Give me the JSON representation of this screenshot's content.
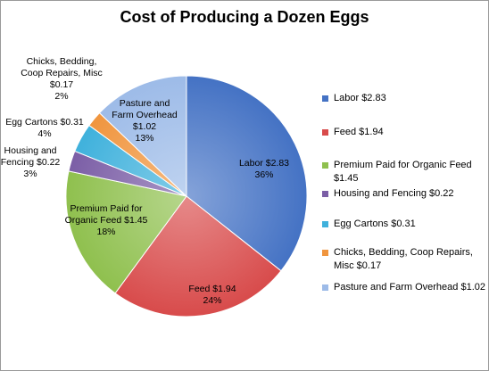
{
  "chart_data": {
    "type": "pie",
    "title": "Cost of Producing a Dozen Eggs",
    "start_angle_deg": 90,
    "direction": "clockwise",
    "slices": [
      {
        "label": "Labor",
        "value": 2.83,
        "value_text": "$2.83",
        "percent": "36%",
        "color": "#4472c4",
        "legend": "Labor $2.83",
        "data_label": [
          "Labor $2.83",
          "36%"
        ]
      },
      {
        "label": "Feed",
        "value": 1.94,
        "value_text": "$1.94",
        "percent": "24%",
        "color": "#d84b4b",
        "legend": "Feed $1.94",
        "data_label": [
          "Feed $1.94",
          "24%"
        ]
      },
      {
        "label": "Premium Paid for Organic Feed",
        "value": 1.45,
        "value_text": "$1.45",
        "percent": "18%",
        "color": "#8fc04e",
        "legend": "Premium Paid for Organic Feed $1.45",
        "data_label": [
          "Premium Paid for",
          "Organic Feed $1.45",
          "18%"
        ]
      },
      {
        "label": "Housing and Fencing",
        "value": 0.22,
        "value_text": "$0.22",
        "percent": "3%",
        "color": "#7b5ea6",
        "legend": "Housing and Fencing $0.22",
        "data_label": [
          "Housing and",
          "Fencing $0.22",
          "3%"
        ]
      },
      {
        "label": "Egg Cartons",
        "value": 0.31,
        "value_text": "$0.31",
        "percent": "4%",
        "color": "#3fb1dc",
        "legend": "Egg Cartons $0.31",
        "data_label": [
          "Egg Cartons $0.31",
          "4%"
        ]
      },
      {
        "label": "Chicks, Bedding, Coop Repairs, Misc",
        "value": 0.17,
        "value_text": "$0.17",
        "percent": "2%",
        "color": "#f0953e",
        "legend": "Chicks, Bedding, Coop Repairs, Misc $0.17",
        "data_label": [
          "Chicks, Bedding,",
          "Coop Repairs, Misc",
          "$0.17",
          "2%"
        ]
      },
      {
        "label": "Pasture and Farm Overhead",
        "value": 1.02,
        "value_text": "$1.02",
        "percent": "13%",
        "color": "#9dbbe8",
        "legend": "Pasture and Farm Overhead $1.02",
        "data_label": [
          "Pasture and",
          "Farm Overhead",
          "$1.02",
          "13%"
        ]
      }
    ],
    "legend_position": "right"
  }
}
